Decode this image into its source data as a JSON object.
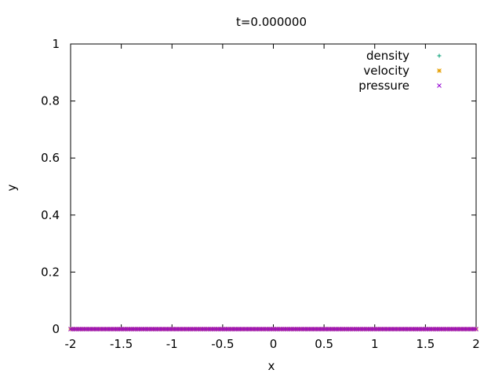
{
  "chart_data": {
    "type": "scatter",
    "title": "t=0.000000",
    "xlabel": "x",
    "ylabel": "y",
    "xlim": [
      -2,
      2
    ],
    "ylim": [
      0,
      1
    ],
    "xticks": [
      "-2",
      "-1.5",
      "-1",
      "-0.5",
      "0",
      "0.5",
      "1",
      "1.5",
      "2"
    ],
    "yticks": [
      "0",
      "0.2",
      "0.4",
      "0.6",
      "0.8",
      "1"
    ],
    "legend_position": "top-right",
    "grid": false,
    "series": [
      {
        "name": "density",
        "marker": "plus",
        "color": "#009e73",
        "x_range": [
          -2,
          2
        ],
        "y": 0
      },
      {
        "name": "velocity",
        "marker": "star",
        "color": "#e69f00",
        "x_range": [
          -2,
          2
        ],
        "y": 0
      },
      {
        "name": "pressure",
        "marker": "cross",
        "color": "#9400d3",
        "x_range": [
          -2,
          2
        ],
        "y": 0
      }
    ]
  }
}
